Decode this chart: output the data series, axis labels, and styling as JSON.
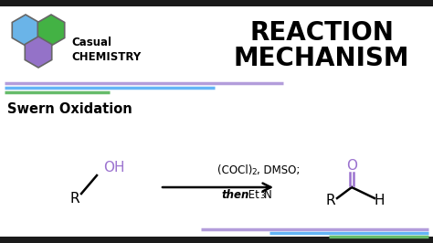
{
  "bg_color": "#ffffff",
  "dark_bar": "#1a1a1a",
  "title_text_line1": "REACTION",
  "title_text_line2": "MECHANISM",
  "logo_casual": "Casual",
  "logo_chemistry": "CHEMISTRY",
  "section_title": "Swern Oxidation",
  "reagent1": "(COCl)",
  "reagent1_sub": "2",
  "reagent1_rest": ", DMSO;",
  "reagent2_italic": "then",
  "reagent2_normal_pre": " Et",
  "reagent2_sub": "3",
  "reagent2_normal_post": "N",
  "color_purple": "#9b72cf",
  "color_black": "#000000",
  "hex_blue": "#6ab4e8",
  "hex_green": "#43b244",
  "hex_purple": "#9472c8",
  "line_purple": "#b39ddb",
  "line_blue": "#64b5f6",
  "line_green": "#66bb6a",
  "border_dark": "#111111"
}
